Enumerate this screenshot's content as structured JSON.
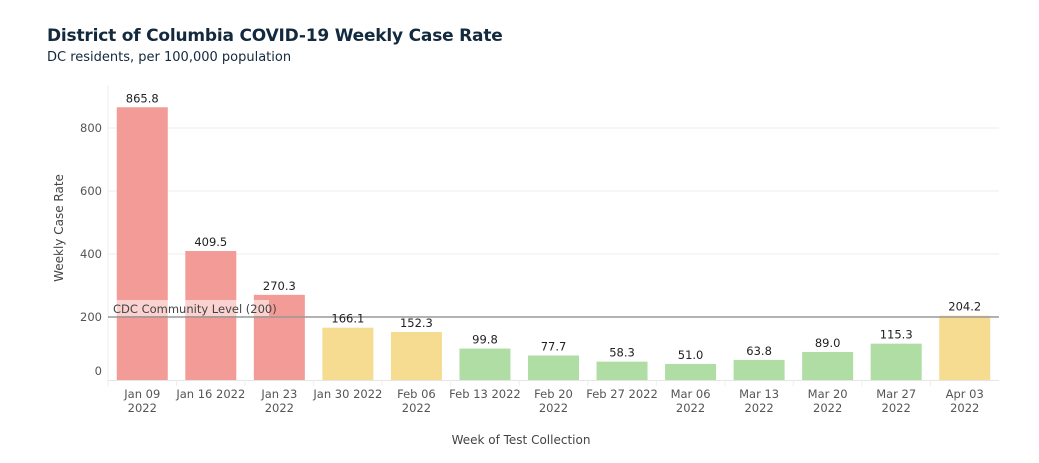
{
  "chart_data": {
    "type": "bar",
    "title": "District of Columbia COVID-19 Weekly Case Rate",
    "subtitle": "DC residents, per 100,000 population",
    "xlabel": "Week of Test Collection",
    "ylabel": "Weekly Case Rate",
    "ylim": [
      0,
      900
    ],
    "yticks": [
      0,
      200,
      400,
      600,
      800
    ],
    "grid": true,
    "categories": [
      [
        "Jan 09",
        "2022"
      ],
      [
        "Jan 16 2022"
      ],
      [
        "Jan 23",
        "2022"
      ],
      [
        "Jan 30 2022"
      ],
      [
        "Feb 06",
        "2022"
      ],
      [
        "Feb 13 2022"
      ],
      [
        "Feb 20",
        "2022"
      ],
      [
        "Feb 27 2022"
      ],
      [
        "Mar 06",
        "2022"
      ],
      [
        "Mar 13",
        "2022"
      ],
      [
        "Mar 20",
        "2022"
      ],
      [
        "Mar 27",
        "2022"
      ],
      [
        "Apr 03",
        "2022"
      ]
    ],
    "values": [
      865.8,
      409.5,
      270.3,
      166.1,
      152.3,
      99.8,
      77.7,
      58.3,
      51.0,
      63.8,
      89.0,
      115.3,
      204.2
    ],
    "value_labels": [
      "865.8",
      "409.5",
      "270.3",
      "166.1",
      "152.3",
      "99.8",
      "77.7",
      "58.3",
      "51.0",
      "63.8",
      "89.0",
      "115.3",
      "204.2"
    ],
    "levels": [
      "high",
      "high",
      "high",
      "medium",
      "medium",
      "low",
      "low",
      "low",
      "low",
      "low",
      "low",
      "low",
      "medium"
    ],
    "level_colors": {
      "high": "#f39b97",
      "medium": "#f5dc91",
      "low": "#afdda3"
    },
    "reference_line": {
      "value": 200,
      "label": "CDC Community Level (200)",
      "color": "#999999"
    }
  }
}
